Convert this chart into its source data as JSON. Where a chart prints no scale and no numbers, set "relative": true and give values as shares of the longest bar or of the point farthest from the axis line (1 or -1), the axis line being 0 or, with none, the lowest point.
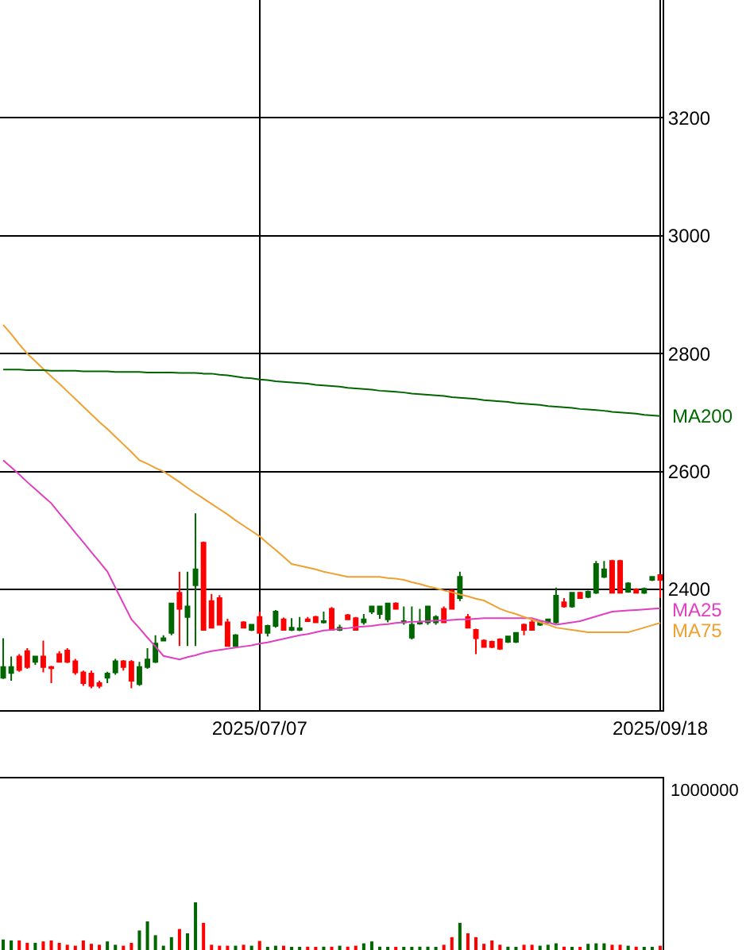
{
  "chart_data": [
    {
      "type": "candlestick",
      "categories": [
        null,
        null,
        null,
        null,
        null,
        null,
        null,
        null,
        null,
        null,
        null,
        null,
        null,
        null,
        null,
        null,
        null,
        null,
        null,
        null,
        null,
        null,
        null,
        null,
        null,
        null,
        null,
        null,
        null,
        null,
        null,
        null,
        "2025/07/07",
        null,
        null,
        null,
        null,
        null,
        null,
        null,
        null,
        null,
        null,
        null,
        null,
        null,
        null,
        null,
        null,
        null,
        null,
        null,
        null,
        null,
        null,
        null,
        null,
        null,
        null,
        null,
        null,
        null,
        null,
        null,
        null,
        null,
        null,
        null,
        null,
        null,
        null,
        null,
        null,
        null,
        null,
        null,
        null,
        null,
        null,
        null,
        null,
        null,
        "2025/09/18"
      ],
      "ohlc": [
        [
          2250,
          2317,
          2248,
          2268
        ],
        [
          2258,
          2286,
          2245,
          2268
        ],
        [
          2286,
          2290,
          2260,
          2263
        ],
        [
          2295,
          2300,
          2265,
          2268
        ],
        [
          2277,
          2286,
          2272,
          2286
        ],
        [
          2286,
          2313,
          2259,
          2268
        ],
        [
          2268,
          2270,
          2241,
          2266
        ],
        [
          2290,
          2295,
          2277,
          2277
        ],
        [
          2296,
          2300,
          2275,
          2277
        ],
        [
          2278,
          2282,
          2255,
          2259
        ],
        [
          2259,
          2262,
          2236,
          2241
        ],
        [
          2257,
          2262,
          2232,
          2236
        ],
        [
          2241,
          2245,
          2232,
          2236
        ],
        [
          2250,
          2260,
          2241,
          2257
        ],
        [
          2259,
          2282,
          2255,
          2278
        ],
        [
          2278,
          2280,
          2262,
          2268
        ],
        [
          2277,
          2280,
          2232,
          2245
        ],
        [
          2239,
          2277,
          2236,
          2268
        ],
        [
          2268,
          2300,
          2265,
          2281
        ],
        [
          2277,
          2322,
          2275,
          2308
        ],
        [
          2313,
          2322,
          2313,
          2317
        ],
        [
          2326,
          2376,
          2322,
          2376
        ],
        [
          2394,
          2430,
          2304,
          2367
        ],
        [
          2353,
          2430,
          2304,
          2371
        ],
        [
          2407,
          2529,
          2304,
          2434
        ],
        [
          2479,
          2481,
          2331,
          2331
        ],
        [
          2380,
          2392,
          2335,
          2335
        ],
        [
          2385,
          2390,
          2340,
          2340
        ],
        [
          2344,
          2350,
          2304,
          2304
        ],
        [
          2304,
          2324,
          2302,
          2322
        ],
        [
          2344,
          2346,
          2335,
          2335
        ],
        [
          2331,
          2340,
          2329,
          2340
        ],
        [
          2353,
          2362,
          2326,
          2326
        ],
        [
          2326,
          2340,
          2320,
          2338
        ],
        [
          2338,
          2365,
          2335,
          2362
        ],
        [
          2349,
          2352,
          2331,
          2331
        ],
        [
          2331,
          2351,
          2329,
          2335
        ],
        [
          2331,
          2353,
          2329,
          2334
        ],
        [
          2349,
          2353,
          2346,
          2346
        ],
        [
          2353,
          2355,
          2344,
          2344
        ],
        [
          2344,
          2362,
          2342,
          2346
        ],
        [
          2367,
          2370,
          2331,
          2331
        ],
        [
          2331,
          2340,
          2329,
          2335
        ],
        [
          2356,
          2358,
          2349,
          2349
        ],
        [
          2351,
          2353,
          2331,
          2331
        ],
        [
          2344,
          2358,
          2340,
          2349
        ],
        [
          2362,
          2371,
          2358,
          2371
        ],
        [
          2358,
          2371,
          2350,
          2371
        ],
        [
          2349,
          2376,
          2344,
          2376
        ],
        [
          2376,
          2378,
          2367,
          2367
        ],
        [
          2344,
          2371,
          2340,
          2346
        ],
        [
          2318,
          2371,
          2315,
          2340
        ],
        [
          2342,
          2367,
          2340,
          2345
        ],
        [
          2344,
          2371,
          2340,
          2371
        ],
        [
          2344,
          2356,
          2340,
          2353
        ],
        [
          2367,
          2371,
          2344,
          2344
        ],
        [
          2398,
          2400,
          2367,
          2367
        ],
        [
          2385,
          2430,
          2380,
          2421
        ],
        [
          2353,
          2358,
          2335,
          2335
        ],
        [
          2331,
          2333,
          2290,
          2317
        ],
        [
          2313,
          2315,
          2302,
          2302
        ],
        [
          2311,
          2313,
          2300,
          2302
        ],
        [
          2315,
          2317,
          2297,
          2299
        ],
        [
          2311,
          2320,
          2309,
          2320
        ],
        [
          2311,
          2326,
          2309,
          2326
        ],
        [
          2340,
          2342,
          2322,
          2331
        ],
        [
          2344,
          2349,
          2331,
          2331
        ],
        [
          2340,
          2344,
          2338,
          2344
        ],
        [
          2344,
          2349,
          2342,
          2349
        ],
        [
          2344,
          2403,
          2342,
          2389
        ],
        [
          2378,
          2385,
          2369,
          2371
        ],
        [
          2371,
          2394,
          2369,
          2394
        ],
        [
          2394,
          2396,
          2385,
          2385
        ],
        [
          2387,
          2398,
          2385,
          2396
        ],
        [
          2394,
          2448,
          2392,
          2443
        ],
        [
          2421,
          2448,
          2419,
          2434
        ],
        [
          2448,
          2450,
          2394,
          2394
        ],
        [
          2448,
          2450,
          2394,
          2394
        ],
        [
          2396,
          2412,
          2394,
          2410
        ],
        [
          2400,
          2402,
          2394,
          2394
        ],
        [
          2394,
          2403,
          2392,
          2401
        ],
        [
          2416,
          2421,
          2414,
          2421
        ],
        [
          2424,
          2425,
          2385,
          2416
        ]
      ],
      "colors": [
        "#006600",
        "#006600",
        "#ff0000",
        "#ff0000",
        "#006600",
        "#ff0000",
        "#ff0000",
        "#ff0000",
        "#ff0000",
        "#ff0000",
        "#ff0000",
        "#ff0000",
        "#ff0000",
        "#006600",
        "#006600",
        "#ff0000",
        "#ff0000",
        "#006600",
        "#006600",
        "#006600",
        "#006600",
        "#006600",
        "#ff0000",
        "#006600",
        "#006600",
        "#ff0000",
        "#ff0000",
        "#ff0000",
        "#ff0000",
        "#006600",
        "#ff0000",
        "#006600",
        "#ff0000",
        "#006600",
        "#006600",
        "#ff0000",
        "#006600",
        "#006600",
        "#ff0000",
        "#ff0000",
        "#006600",
        "#ff0000",
        "#006600",
        "#ff0000",
        "#ff0000",
        "#006600",
        "#006600",
        "#006600",
        "#006600",
        "#ff0000",
        "#006600",
        "#006600",
        "#006600",
        "#006600",
        "#006600",
        "#ff0000",
        "#ff0000",
        "#006600",
        "#ff0000",
        "#ff0000",
        "#ff0000",
        "#ff0000",
        "#ff0000",
        "#006600",
        "#006600",
        "#ff0000",
        "#ff0000",
        "#006600",
        "#006600",
        "#006600",
        "#ff0000",
        "#006600",
        "#ff0000",
        "#006600",
        "#006600",
        "#006600",
        "#ff0000",
        "#ff0000",
        "#006600",
        "#ff0000",
        "#006600",
        "#006600",
        "#ff0000"
      ],
      "series": [
        {
          "type": "line",
          "name": "MA25",
          "color": "#e040c0",
          "values": [
            2619,
            2607,
            2595,
            2582,
            2570,
            2558,
            2546,
            2529,
            2513,
            2496,
            2480,
            2463,
            2447,
            2430,
            2403,
            2376,
            2349,
            2334,
            2318,
            2303,
            2287,
            2284,
            2281,
            2285,
            2288,
            2292,
            2295,
            2297,
            2299,
            2301,
            2303,
            2305,
            2308,
            2310,
            2313,
            2316,
            2319,
            2322,
            2324,
            2327,
            2330,
            2331,
            2333,
            2334,
            2336,
            2337,
            2338,
            2340,
            2341,
            2343,
            2344,
            2345,
            2345,
            2346,
            2347,
            2347,
            2348,
            2349,
            2349,
            2350,
            2351,
            2351,
            2351,
            2351,
            2351,
            2351,
            2351,
            2347,
            2344,
            2340,
            2342,
            2344,
            2346,
            2350,
            2354,
            2358,
            2362,
            2363,
            2364,
            2365,
            2366,
            2367,
            2368
          ]
        },
        {
          "type": "line",
          "name": "MA75",
          "color": "#f0a030",
          "values": [
            2849,
            2833,
            2816,
            2800,
            2787,
            2774,
            2761,
            2749,
            2736,
            2723,
            2710,
            2697,
            2684,
            2672,
            2659,
            2646,
            2633,
            2619,
            2613,
            2606,
            2600,
            2591,
            2582,
            2572,
            2563,
            2554,
            2545,
            2536,
            2527,
            2517,
            2508,
            2499,
            2490,
            2478,
            2467,
            2455,
            2443,
            2440,
            2437,
            2434,
            2430,
            2427,
            2424,
            2421,
            2421,
            2421,
            2421,
            2421,
            2419,
            2418,
            2416,
            2412,
            2409,
            2405,
            2402,
            2398,
            2395,
            2391,
            2388,
            2384,
            2381,
            2374,
            2367,
            2362,
            2358,
            2353,
            2349,
            2344,
            2340,
            2335,
            2333,
            2331,
            2329,
            2327,
            2327,
            2327,
            2327,
            2327,
            2327,
            2331,
            2335,
            2339,
            2343
          ]
        },
        {
          "type": "line",
          "name": "MA200",
          "color": "#006600",
          "values": [
            2773,
            2773,
            2773,
            2772,
            2772,
            2772,
            2771,
            2771,
            2771,
            2771,
            2770,
            2770,
            2770,
            2770,
            2769,
            2769,
            2769,
            2769,
            2768,
            2768,
            2768,
            2768,
            2767,
            2767,
            2767,
            2766,
            2766,
            2764,
            2763,
            2761,
            2759,
            2758,
            2756,
            2755,
            2753,
            2752,
            2751,
            2750,
            2749,
            2747,
            2746,
            2745,
            2744,
            2742,
            2741,
            2740,
            2739,
            2737,
            2736,
            2735,
            2734,
            2732,
            2731,
            2730,
            2729,
            2728,
            2726,
            2725,
            2724,
            2723,
            2721,
            2720,
            2719,
            2718,
            2716,
            2715,
            2714,
            2713,
            2711,
            2710,
            2709,
            2708,
            2706,
            2705,
            2704,
            2703,
            2701,
            2700,
            2699,
            2698,
            2696,
            2695,
            2694
          ]
        }
      ],
      "ylim": [
        2195,
        3400
      ],
      "yticks": [
        2400,
        2600,
        2800,
        3000,
        3200
      ],
      "grid": true
    },
    {
      "type": "bar",
      "relative": true,
      "categories": [
        null,
        null,
        null,
        null,
        null,
        null,
        null,
        null,
        null,
        null,
        null,
        null,
        null,
        null,
        null,
        null,
        null,
        null,
        null,
        null,
        null,
        null,
        null,
        null,
        null,
        null,
        null,
        null,
        null,
        null,
        null,
        null,
        null,
        null,
        null,
        null,
        null,
        null,
        null,
        null,
        null,
        null,
        null,
        null,
        null,
        null,
        null,
        null,
        null,
        null,
        null,
        null,
        null,
        null,
        null,
        null,
        null,
        null,
        null,
        null,
        null,
        null,
        null,
        null,
        null,
        null,
        null,
        null,
        null,
        null,
        null,
        null,
        null,
        null,
        null,
        null,
        null,
        null,
        null,
        null,
        null,
        null,
        null
      ],
      "values": [
        0.22,
        0.2,
        0.2,
        0.15,
        0.15,
        0.18,
        0.2,
        0.15,
        0.11,
        0.09,
        0.2,
        0.13,
        0.11,
        0.18,
        0.11,
        0.09,
        0.15,
        0.41,
        0.6,
        0.31,
        0.09,
        0.27,
        0.44,
        0.35,
        1,
        0.57,
        0.11,
        0.09,
        0.09,
        0.09,
        0.11,
        0.09,
        0.19,
        0.05,
        0.09,
        0.09,
        0.05,
        0.05,
        0.07,
        0.05,
        0.07,
        0.07,
        0.09,
        0.07,
        0.09,
        0.14,
        0.18,
        0.07,
        0.05,
        0.05,
        0.05,
        0.05,
        0.07,
        0.07,
        0.05,
        0.11,
        0.27,
        0.57,
        0.35,
        0.27,
        0.13,
        0.2,
        0.11,
        0.07,
        0.05,
        0.11,
        0.11,
        0.09,
        0.11,
        0.14,
        0.07,
        0.05,
        0.05,
        0.13,
        0.14,
        0.14,
        0.11,
        0.11,
        0.09,
        0.07,
        0.05,
        0.05,
        0.09
      ],
      "colors": [
        "#006600",
        "#006600",
        "#ff0000",
        "#ff0000",
        "#006600",
        "#ff0000",
        "#ff0000",
        "#ff0000",
        "#ff0000",
        "#ff0000",
        "#ff0000",
        "#ff0000",
        "#ff0000",
        "#006600",
        "#006600",
        "#ff0000",
        "#ff0000",
        "#006600",
        "#006600",
        "#006600",
        "#006600",
        "#006600",
        "#ff0000",
        "#006600",
        "#006600",
        "#ff0000",
        "#ff0000",
        "#ff0000",
        "#ff0000",
        "#006600",
        "#ff0000",
        "#006600",
        "#ff0000",
        "#006600",
        "#006600",
        "#ff0000",
        "#006600",
        "#006600",
        "#ff0000",
        "#ff0000",
        "#006600",
        "#ff0000",
        "#006600",
        "#ff0000",
        "#ff0000",
        "#006600",
        "#006600",
        "#006600",
        "#006600",
        "#ff0000",
        "#006600",
        "#006600",
        "#006600",
        "#006600",
        "#006600",
        "#ff0000",
        "#ff0000",
        "#006600",
        "#ff0000",
        "#ff0000",
        "#ff0000",
        "#ff0000",
        "#ff0000",
        "#006600",
        "#006600",
        "#ff0000",
        "#ff0000",
        "#006600",
        "#006600",
        "#006600",
        "#ff0000",
        "#006600",
        "#ff0000",
        "#006600",
        "#006600",
        "#006600",
        "#ff0000",
        "#ff0000",
        "#006600",
        "#ff0000",
        "#006600",
        "#006600",
        "#ff0000"
      ],
      "annotations": [
        "1000000"
      ]
    }
  ]
}
